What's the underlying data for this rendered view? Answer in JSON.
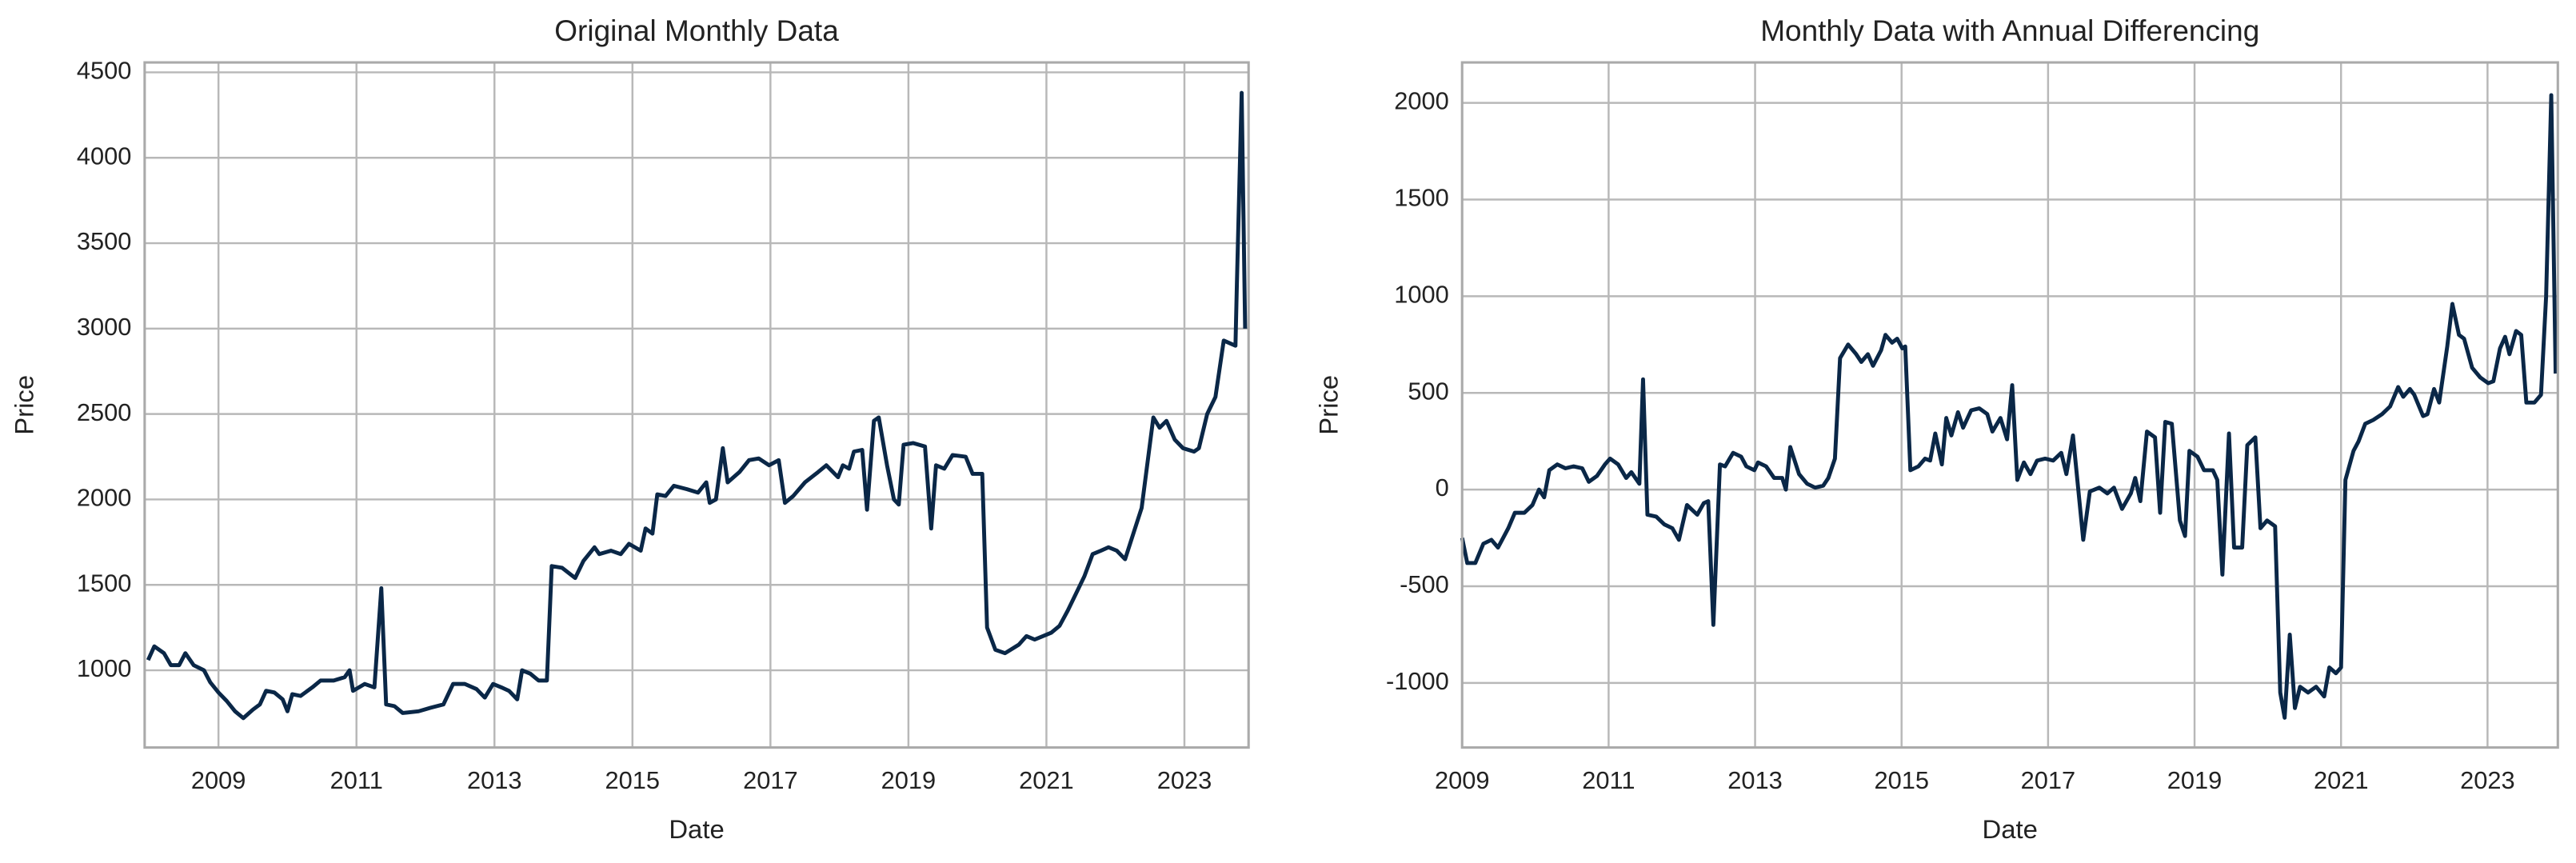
{
  "chart_data": [
    {
      "type": "line",
      "title": "Original Monthly Data",
      "x_label": "Date",
      "y_label": "Price",
      "color": "#0a2747",
      "grid": true,
      "xlim": [
        2007.93,
        2023.93
      ],
      "xticks": [
        2009,
        2011,
        2013,
        2015,
        2017,
        2019,
        2021,
        2023
      ],
      "ylim": [
        548,
        4558
      ],
      "yticks": [
        1000,
        1500,
        2000,
        2500,
        3000,
        3500,
        4000,
        4500
      ],
      "x": [
        2007.98,
        2008.07,
        2008.21,
        2008.31,
        2008.43,
        2008.52,
        2008.64,
        2008.79,
        2008.88,
        2009,
        2009.12,
        2009.24,
        2009.36,
        2009.5,
        2009.6,
        2009.69,
        2009.81,
        2009.93,
        2010,
        2010.07,
        2010.19,
        2010.36,
        2010.48,
        2010.67,
        2010.83,
        2010.9,
        2010.95,
        2011.12,
        2011.26,
        2011.36,
        2011.43,
        2011.55,
        2011.67,
        2011.9,
        2012.07,
        2012.26,
        2012.4,
        2012.57,
        2012.74,
        2012.86,
        2012.98,
        2013.1,
        2013.21,
        2013.33,
        2013.4,
        2013.52,
        2013.64,
        2013.76,
        2013.83,
        2013.98,
        2014.17,
        2014.29,
        2014.45,
        2014.52,
        2014.69,
        2014.83,
        2014.95,
        2015.12,
        2015.19,
        2015.29,
        2015.36,
        2015.48,
        2015.6,
        2015.79,
        2015.95,
        2016.07,
        2016.12,
        2016.21,
        2016.31,
        2016.38,
        2016.55,
        2016.69,
        2016.83,
        2016.98,
        2017.12,
        2017.21,
        2017.33,
        2017.5,
        2017.69,
        2017.81,
        2017.98,
        2018.05,
        2018.14,
        2018.21,
        2018.33,
        2018.4,
        2018.5,
        2018.57,
        2018.69,
        2018.79,
        2018.86,
        2018.93,
        2019.07,
        2019.24,
        2019.33,
        2019.4,
        2019.52,
        2019.64,
        2019.83,
        2019.93,
        2020.07,
        2020.14,
        2020.26,
        2020.4,
        2020.6,
        2020.71,
        2020.83,
        2021.07,
        2021.19,
        2021.31,
        2021.43,
        2021.55,
        2021.67,
        2021.79,
        2021.9,
        2022.02,
        2022.14,
        2022.26,
        2022.38,
        2022.55,
        2022.64,
        2022.74,
        2022.86,
        2022.98,
        2023.14,
        2023.21,
        2023.33,
        2023.45,
        2023.57,
        2023.74,
        2023.76,
        2023.83,
        2023.88
      ],
      "values": [
        1060,
        1140,
        1100,
        1030,
        1030,
        1100,
        1030,
        1000,
        930,
        870,
        820,
        760,
        720,
        770,
        800,
        880,
        870,
        830,
        760,
        860,
        850,
        900,
        940,
        940,
        960,
        1000,
        880,
        920,
        900,
        1480,
        800,
        790,
        750,
        760,
        780,
        800,
        920,
        920,
        890,
        840,
        920,
        900,
        880,
        830,
        1000,
        980,
        940,
        940,
        1610,
        1600,
        1540,
        1640,
        1720,
        1680,
        1700,
        1680,
        1740,
        1700,
        1830,
        1800,
        2030,
        2020,
        2080,
        2060,
        2040,
        2100,
        1980,
        2000,
        2300,
        2100,
        2160,
        2230,
        2240,
        2200,
        2230,
        1980,
        2020,
        2100,
        2160,
        2200,
        2130,
        2200,
        2180,
        2280,
        2290,
        1940,
        2460,
        2480,
        2200,
        2000,
        1970,
        2320,
        2330,
        2310,
        1830,
        2200,
        2180,
        2260,
        2250,
        2150,
        2150,
        1250,
        1120,
        1100,
        1150,
        1200,
        1180,
        1220,
        1260,
        1350,
        1450,
        1550,
        1680,
        1700,
        1720,
        1700,
        1650,
        1800,
        1950,
        2480,
        2420,
        2460,
        2350,
        2300,
        2280,
        2300,
        2500,
        2600,
        2930,
        2900,
        3250,
        4380,
        3000
      ]
    },
    {
      "type": "line",
      "title": "Monthly Data with Annual Differencing",
      "x_label": "Date",
      "y_label": "Price",
      "color": "#0a2747",
      "grid": true,
      "xlim": [
        2009,
        2023.96
      ],
      "xticks": [
        2009,
        2011,
        2013,
        2015,
        2017,
        2019,
        2021,
        2023
      ],
      "ylim": [
        -1334,
        2209
      ],
      "yticks": [
        -1000,
        -500,
        0,
        500,
        1000,
        1500,
        2000
      ],
      "x": [
        2009,
        2009.07,
        2009.18,
        2009.29,
        2009.4,
        2009.49,
        2009.63,
        2009.72,
        2009.85,
        2009.96,
        2010.05,
        2010.12,
        2010.19,
        2010.3,
        2010.41,
        2010.52,
        2010.64,
        2010.73,
        2010.84,
        2010.95,
        2011.02,
        2011.13,
        2011.24,
        2011.31,
        2011.42,
        2011.47,
        2011.53,
        2011.65,
        2011.76,
        2011.87,
        2011.96,
        2012.07,
        2012.21,
        2012.3,
        2012.36,
        2012.43,
        2012.52,
        2012.59,
        2012.7,
        2012.81,
        2012.88,
        2012.99,
        2013.04,
        2013.15,
        2013.26,
        2013.37,
        2013.42,
        2013.48,
        2013.6,
        2013.71,
        2013.82,
        2013.93,
        2014,
        2014.09,
        2014.16,
        2014.27,
        2014.38,
        2014.45,
        2014.54,
        2014.61,
        2014.72,
        2014.78,
        2014.87,
        2014.94,
        2015.01,
        2015.05,
        2015.12,
        2015.23,
        2015.32,
        2015.39,
        2015.46,
        2015.55,
        2015.61,
        2015.68,
        2015.77,
        2015.84,
        2015.95,
        2016.06,
        2016.17,
        2016.24,
        2016.35,
        2016.44,
        2016.51,
        2016.58,
        2016.67,
        2016.76,
        2016.85,
        2016.96,
        2017.07,
        2017.18,
        2017.25,
        2017.34,
        2017.48,
        2017.57,
        2017.7,
        2017.81,
        2017.9,
        2018.01,
        2018.13,
        2018.19,
        2018.26,
        2018.35,
        2018.46,
        2018.53,
        2018.6,
        2018.69,
        2018.8,
        2018.87,
        2018.93,
        2019.04,
        2019.13,
        2019.25,
        2019.31,
        2019.38,
        2019.47,
        2019.54,
        2019.65,
        2019.72,
        2019.83,
        2019.9,
        2019.99,
        2020.1,
        2020.17,
        2020.23,
        2020.3,
        2020.37,
        2020.44,
        2020.55,
        2020.66,
        2020.77,
        2020.84,
        2020.93,
        2021,
        2021.06,
        2021.17,
        2021.24,
        2021.33,
        2021.44,
        2021.56,
        2021.67,
        2021.78,
        2021.85,
        2021.94,
        2022,
        2022.12,
        2022.18,
        2022.27,
        2022.34,
        2022.45,
        2022.52,
        2022.61,
        2022.68,
        2022.79,
        2022.9,
        2023.01,
        2023.08,
        2023.17,
        2023.24,
        2023.3,
        2023.39,
        2023.46,
        2023.53,
        2023.64,
        2023.73,
        2023.8,
        2023.87,
        2023.93
      ],
      "values": [
        -250,
        -380,
        -380,
        -280,
        -260,
        -300,
        -200,
        -120,
        -120,
        -80,
        0,
        -40,
        100,
        130,
        110,
        120,
        110,
        40,
        70,
        130,
        160,
        130,
        60,
        90,
        30,
        570,
        -130,
        -140,
        -180,
        -200,
        -260,
        -80,
        -130,
        -70,
        -60,
        -700,
        130,
        120,
        190,
        170,
        120,
        100,
        140,
        120,
        60,
        60,
        0,
        220,
        80,
        30,
        10,
        20,
        60,
        160,
        680,
        750,
        700,
        660,
        700,
        640,
        720,
        800,
        760,
        780,
        730,
        740,
        100,
        120,
        160,
        150,
        290,
        130,
        370,
        280,
        400,
        320,
        410,
        420,
        390,
        300,
        370,
        260,
        540,
        50,
        140,
        80,
        150,
        160,
        150,
        190,
        80,
        280,
        -260,
        -10,
        10,
        -20,
        10,
        -100,
        -20,
        60,
        -60,
        300,
        270,
        -120,
        350,
        340,
        -160,
        -240,
        200,
        170,
        100,
        100,
        50,
        -440,
        290,
        -300,
        -300,
        230,
        270,
        -200,
        -160,
        -190,
        -1050,
        -1180,
        -750,
        -1130,
        -1020,
        -1050,
        -1020,
        -1070,
        -920,
        -950,
        -920,
        50,
        200,
        250,
        340,
        360,
        390,
        430,
        530,
        480,
        520,
        490,
        380,
        390,
        520,
        450,
        740,
        960,
        800,
        780,
        630,
        580,
        550,
        560,
        730,
        790,
        700,
        820,
        800,
        450,
        450,
        490,
        1000,
        2040,
        600
      ]
    }
  ]
}
